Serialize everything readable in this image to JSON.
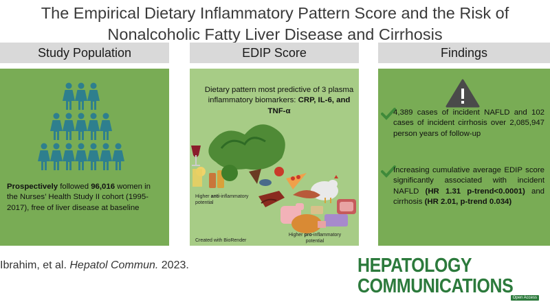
{
  "title": {
    "line1": "The Empirical Dietary Inflammatory Pattern Score and the Risk of",
    "line2": "Nonalcoholic Fatty Liver Disease and Cirrhosis"
  },
  "columns": {
    "population": {
      "heading": "Study Population",
      "text_bold1": "Prospectively",
      "text_mid1": " followed ",
      "text_bold2": "96,016",
      "text_rest": " women in the Nurses’ Health Study II cohort (1995-2017), free of liver disease at baseline"
    },
    "edip": {
      "heading": "EDIP Score",
      "text_plain": "Dietary pattern most predictive of 3 plasma inflammatory biomarkers: ",
      "text_bold": "CRP, IL-6, and TNF-α",
      "caption_anti_pre": "Higher ",
      "caption_anti_bold": "anti",
      "caption_anti_post": "-inflammatory potential",
      "caption_pro_pre": "Higher ",
      "caption_pro_bold": "pro",
      "caption_pro_post": "-inflammatory potential",
      "caption_credit": "Created with BioRender"
    },
    "findings": {
      "heading": "Findings",
      "finding1": "4,389 cases of incident NAFLD and 102 cases of incident cirrhosis over 2,085,947 person years of follow-up",
      "finding2_a": "Increasing cumulative average EDIP score significantly associated with incident NAFLD ",
      "finding2_b": "(HR 1.31 p-trend<0.0001)",
      "finding2_c": " and cirrhosis ",
      "finding2_d": "(HR 2.01, p-trend 0.034)"
    }
  },
  "citation": {
    "authors": "Ibrahim, et al. ",
    "journal_abbrev": "Hepatol Commun.",
    "year": " 2023."
  },
  "journal_logo": {
    "line1": "HEPATOLOGY",
    "line2": "COMMUNICATIONS",
    "badge": "Open Access"
  },
  "colors": {
    "panel_dark": "#79ac55",
    "panel_light": "#a7cc86",
    "person": "#2e7f8e",
    "check": "#3f8a3a",
    "journal_green": "#2c7a3c"
  },
  "icons": [
    "person-icon",
    "warning-icon",
    "check-icon",
    "food-illustration"
  ]
}
